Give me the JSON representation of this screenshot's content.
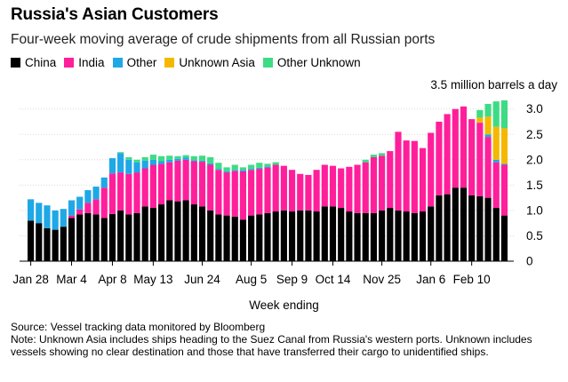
{
  "title": "Russia's Asian Customers",
  "subtitle": "Four-week moving average of crude shipments from all Russian ports",
  "unit_label": "3.5 million barrels a day",
  "xlabel": "Week ending",
  "source": "Source: Vessel tracking data monitored by Bloomberg",
  "note": "Note: Unknown Asia includes ships heading to the Suez Canal from Russia's western ports. Unknown includes vessels showing no clear destination and those that have transferred their cargo to unidentified ships.",
  "legend": [
    {
      "label": "China",
      "color": "#000000"
    },
    {
      "label": "India",
      "color": "#ff1f9b"
    },
    {
      "label": "Other",
      "color": "#1fa8e6"
    },
    {
      "label": "Unknown Asia",
      "color": "#f5b800"
    },
    {
      "label": "Other Unknown",
      "color": "#3ddc84"
    }
  ],
  "chart_data": {
    "type": "bar",
    "stacked": true,
    "xlabel": "Week ending",
    "ylabel": "3.5 million barrels a day",
    "ylim": [
      0,
      3.5
    ],
    "y_ticks": [
      0,
      0.5,
      1.0,
      1.5,
      2.0,
      2.5,
      3.0
    ],
    "y_tick_labels": [
      "0",
      "0.5",
      "1.0",
      "1.5",
      "2.0",
      "2.5",
      "3.0"
    ],
    "x_tick_labels": [
      {
        "index": 0,
        "label": "Jan 28"
      },
      {
        "index": 5,
        "label": "Mar 4"
      },
      {
        "index": 10,
        "label": "Apr 8"
      },
      {
        "index": 15,
        "label": "May 13"
      },
      {
        "index": 21,
        "label": "Jun 24"
      },
      {
        "index": 27,
        "label": "Aug 5"
      },
      {
        "index": 32,
        "label": "Sep 9"
      },
      {
        "index": 37,
        "label": "Oct 14"
      },
      {
        "index": 43,
        "label": "Nov 25"
      },
      {
        "index": 49,
        "label": "Jan 6"
      },
      {
        "index": 54,
        "label": "Feb 10"
      }
    ],
    "series": [
      {
        "name": "China",
        "color": "#000000",
        "values": [
          0.8,
          0.75,
          0.65,
          0.62,
          0.68,
          0.85,
          0.92,
          0.95,
          0.92,
          0.85,
          0.93,
          1.0,
          0.92,
          0.95,
          1.08,
          1.05,
          1.12,
          1.2,
          1.18,
          1.2,
          1.12,
          1.08,
          1.0,
          0.92,
          0.9,
          0.88,
          0.82,
          0.9,
          0.92,
          0.95,
          0.98,
          1.0,
          0.98,
          1.0,
          1.0,
          0.98,
          1.08,
          1.08,
          1.05,
          0.98,
          0.95,
          0.95,
          0.95,
          1.0,
          1.05,
          1.0,
          0.98,
          0.95,
          0.98,
          1.08,
          1.3,
          1.32,
          1.45,
          1.45,
          1.3,
          1.28,
          1.25,
          1.05,
          0.9
        ]
      },
      {
        "name": "India",
        "color": "#ff1f9b",
        "values": [
          0.0,
          0.0,
          0.0,
          0.0,
          0.0,
          0.05,
          0.1,
          0.2,
          0.3,
          0.6,
          0.8,
          0.75,
          0.8,
          0.8,
          0.75,
          0.85,
          0.8,
          0.75,
          0.8,
          0.8,
          0.85,
          0.88,
          0.9,
          0.88,
          0.85,
          0.9,
          0.95,
          0.9,
          0.9,
          0.9,
          0.92,
          0.88,
          0.82,
          0.72,
          0.7,
          0.82,
          0.82,
          0.8,
          0.78,
          0.88,
          0.95,
          1.0,
          1.1,
          1.08,
          1.12,
          1.55,
          1.4,
          1.42,
          1.25,
          1.45,
          1.45,
          1.58,
          1.55,
          1.6,
          1.5,
          1.45,
          1.2,
          0.9,
          1.0
        ]
      },
      {
        "name": "Other",
        "color": "#1fa8e6",
        "values": [
          0.42,
          0.4,
          0.45,
          0.38,
          0.35,
          0.3,
          0.25,
          0.25,
          0.25,
          0.2,
          0.3,
          0.38,
          0.28,
          0.2,
          0.15,
          0.1,
          0.05,
          0.05,
          0.04,
          0.04,
          0.02,
          0.02,
          0.03,
          0.02,
          0.02,
          0.02,
          0.03,
          0.02,
          0.02,
          0.02,
          0.0,
          0.0,
          0.0,
          0.0,
          0.0,
          0.0,
          0.0,
          0.0,
          0.0,
          0.0,
          0.0,
          0.0,
          0.0,
          0.0,
          0.0,
          0.0,
          0.0,
          0.0,
          0.0,
          0.0,
          0.0,
          0.0,
          0.0,
          0.0,
          0.0,
          0.0,
          0.05,
          0.05,
          0.02
        ]
      },
      {
        "name": "Unknown Asia",
        "color": "#f5b800",
        "values": [
          0,
          0,
          0,
          0,
          0,
          0,
          0,
          0,
          0,
          0,
          0,
          0,
          0,
          0,
          0,
          0,
          0,
          0,
          0,
          0,
          0,
          0,
          0,
          0,
          0,
          0,
          0,
          0,
          0,
          0,
          0,
          0,
          0,
          0,
          0,
          0,
          0,
          0,
          0,
          0,
          0,
          0,
          0,
          0,
          0,
          0,
          0,
          0,
          0,
          0,
          0,
          0,
          0,
          0,
          0,
          0.1,
          0.35,
          0.65,
          0.7
        ]
      },
      {
        "name": "Other Unknown",
        "color": "#3ddc84",
        "values": [
          0,
          0,
          0,
          0,
          0,
          0,
          0,
          0,
          0,
          0,
          0,
          0.02,
          0.05,
          0.05,
          0.07,
          0.1,
          0.1,
          0.08,
          0.05,
          0.05,
          0.08,
          0.1,
          0.12,
          0.12,
          0.08,
          0.1,
          0.05,
          0.08,
          0.1,
          0.05,
          0.05,
          0.0,
          0.0,
          0.0,
          0.0,
          0.0,
          0.0,
          0.0,
          0.0,
          0.0,
          0.0,
          0.05,
          0.05,
          0.05,
          0.0,
          0.0,
          0.0,
          0.0,
          0.0,
          0.0,
          0.0,
          0.0,
          0.0,
          0.0,
          0.0,
          0.15,
          0.25,
          0.5,
          0.55
        ]
      }
    ]
  }
}
